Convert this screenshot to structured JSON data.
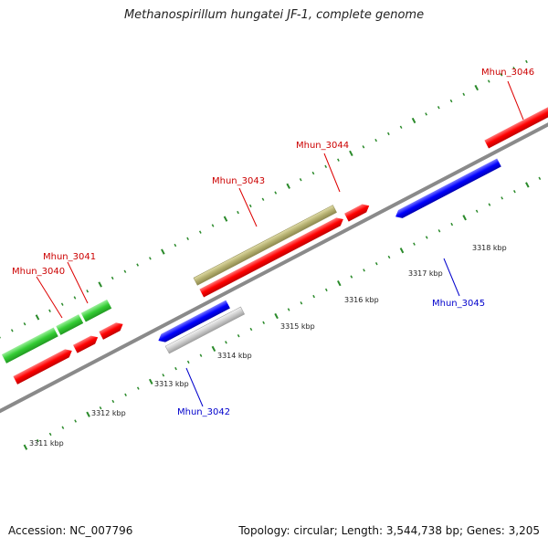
{
  "title": "Methanospirillum hungatei JF-1, complete genome",
  "footer": {
    "accession": "Accession: NC_007796",
    "summary": "Topology: circular; Length: 3,544,738 bp; Genes: 3,205"
  },
  "colors": {
    "forward_cds": "#ff0000",
    "reverse_cds": "#0000ff",
    "other_feature": "#b5b070",
    "gc_track": "#33cc33",
    "tick": "#2a8a2a",
    "backbone": "#888888",
    "pseudo": "#cccccc"
  },
  "scale_labels": [
    "3311 kbp",
    "3312 kbp",
    "3313 kbp",
    "3314 kbp",
    "3315 kbp",
    "3316 kbp",
    "3317 kbp",
    "3318 kbp"
  ],
  "gene_labels": [
    {
      "text": "Mhun_3040",
      "strand": "forward"
    },
    {
      "text": "Mhun_3041",
      "strand": "forward"
    },
    {
      "text": "Mhun_3042",
      "strand": "reverse"
    },
    {
      "text": "Mhun_3043",
      "strand": "forward"
    },
    {
      "text": "Mhun_3044",
      "strand": "forward"
    },
    {
      "text": "Mhun_3045",
      "strand": "reverse"
    },
    {
      "text": "Mhun_3046",
      "strand": "forward"
    }
  ]
}
